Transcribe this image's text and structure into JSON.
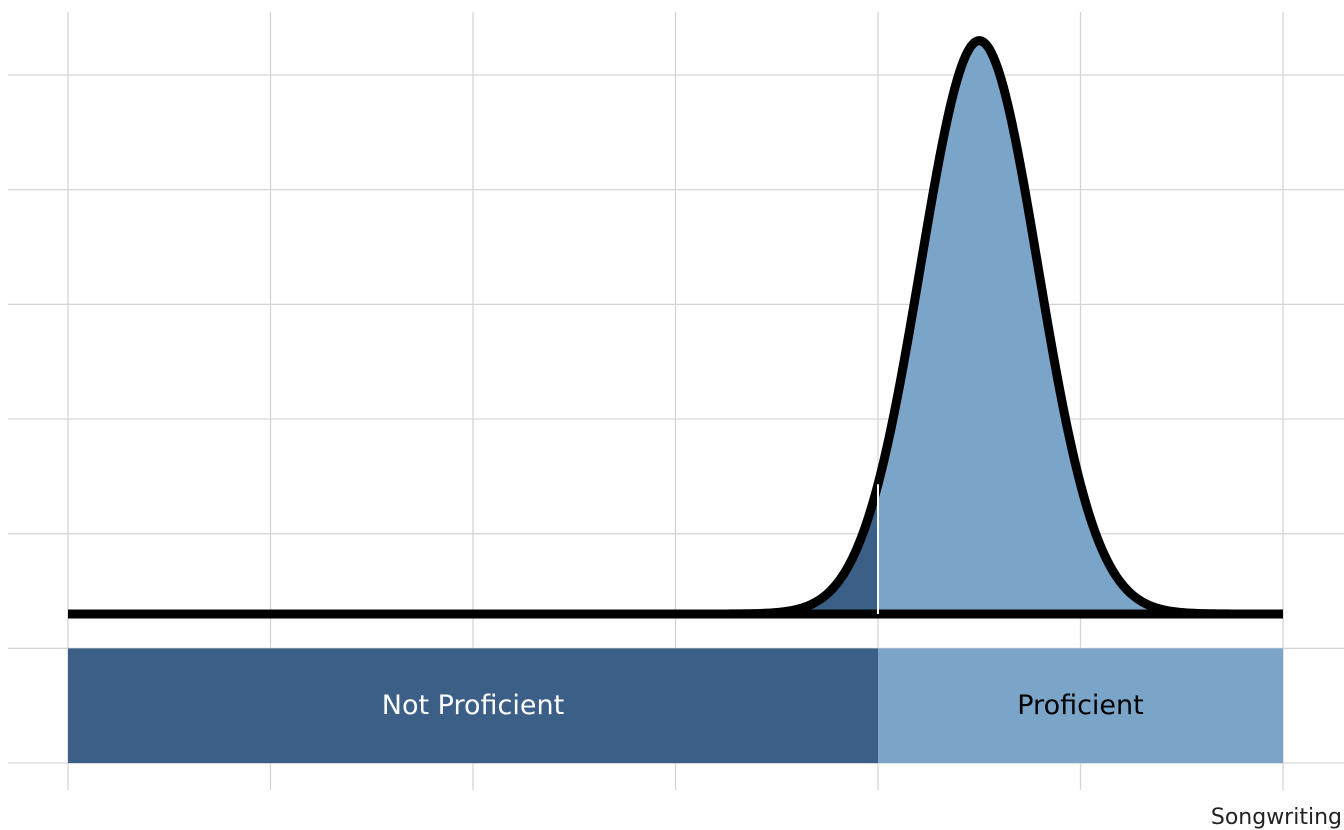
{
  "colors": {
    "not_proficient": "#3c5f87",
    "proficient": "#7aa5c9",
    "curve": "#000000",
    "grid": "#d3d3d3"
  },
  "chart_data": {
    "type": "area",
    "x_axis_title": "Songwriting",
    "xlim": [
      0,
      6
    ],
    "ylim": [
      -1.5,
      5.3
    ],
    "grid_x": [
      0,
      1,
      2,
      3,
      4,
      5,
      6
    ],
    "grid_y": [
      -1.3,
      -0.3,
      0.7,
      1.7,
      2.7,
      3.7,
      4.7
    ],
    "grid": true,
    "cut_point": 4,
    "distribution": {
      "shape": "normal",
      "mean": 4.5,
      "sd": 0.29,
      "peak_height": 5.0
    },
    "bands": [
      {
        "name": "not_proficient",
        "label": "Not Proficient",
        "from": 0,
        "to": 4,
        "color_key": "not_proficient",
        "label_color": "#ffffff"
      },
      {
        "name": "proficient",
        "label": "Proficient",
        "from": 4,
        "to": 6,
        "color_key": "proficient",
        "label_color": "#000000"
      }
    ],
    "band_y_range": [
      -1.3,
      -0.3
    ]
  }
}
